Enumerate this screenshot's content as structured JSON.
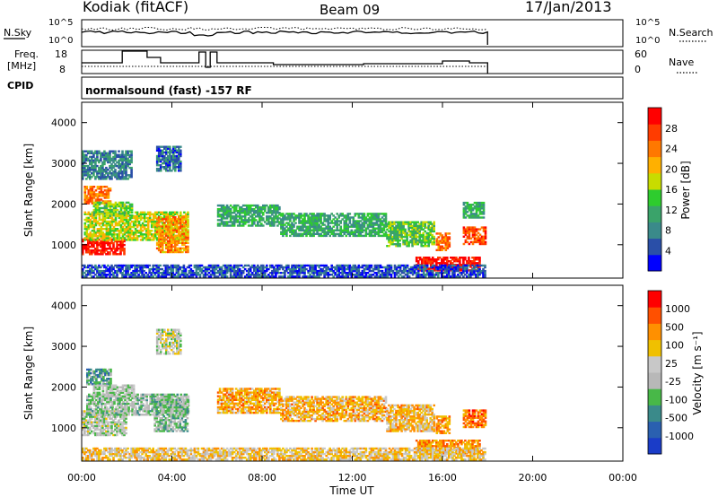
{
  "header": {
    "station": "Kodiak (fitACF)",
    "beam": "Beam 09",
    "date": "17/Jan/2013",
    "program": "normalsound (fast) -157 RF"
  },
  "labels": {
    "nsky": "N.Sky",
    "nsearch": "N.Search",
    "freq": "Freq.",
    "freq_unit": "[MHz]",
    "nave": "Nave",
    "cpid": "CPID"
  },
  "status_ticks": {
    "noise_left": [
      "10^5",
      "10^0"
    ],
    "noise_right": [
      "10^5",
      "10^0"
    ],
    "freq_left": [
      "18",
      "8"
    ],
    "nave_right": [
      "60",
      "0"
    ]
  },
  "chart_data": [
    {
      "type": "heatmap",
      "name": "power",
      "ylabel": "Slant Range [km]",
      "xlabel": "",
      "ylim": [
        180,
        4500
      ],
      "xlim": [
        "00:00",
        "24:00"
      ],
      "yticks": [
        "1000",
        "2000",
        "3000",
        "4000"
      ],
      "xticks": [
        "00:00",
        "04:00",
        "08:00",
        "12:00",
        "16:00",
        "20:00",
        "00:00"
      ],
      "colorbar_label": "Power [dB]",
      "colorbar_ticks": [
        "28",
        "24",
        "20",
        "16",
        "12",
        "8",
        "4"
      ],
      "colors": [
        "#0000ff",
        "#2a4fa8",
        "#3a8a8a",
        "#3aa36a",
        "#2ecc2e",
        "#c8dc00",
        "#ffb000",
        "#ff7800",
        "#ff3c00",
        "#ff0000"
      ],
      "blobs": [
        {
          "t0": 0.0,
          "t1": 1.9,
          "r0": 750,
          "r1": 1150,
          "v": 0.95
        },
        {
          "t0": 0.1,
          "t1": 4.7,
          "r0": 1100,
          "r1": 1800,
          "v": 0.55
        },
        {
          "t0": 0.1,
          "t1": 1.3,
          "r0": 2000,
          "r1": 2450,
          "v": 0.75
        },
        {
          "t0": 0.5,
          "t1": 2.2,
          "r0": 1700,
          "r1": 2050,
          "v": 0.45
        },
        {
          "t0": 3.3,
          "t1": 4.7,
          "r0": 800,
          "r1": 1700,
          "v": 0.7
        },
        {
          "t0": 0.0,
          "t1": 2.2,
          "r0": 2600,
          "r1": 3300,
          "v": 0.25
        },
        {
          "t0": 3.3,
          "t1": 4.4,
          "r0": 2800,
          "r1": 3400,
          "v": 0.2
        },
        {
          "t0": 6.0,
          "t1": 8.8,
          "r0": 1450,
          "r1": 1950,
          "v": 0.35
        },
        {
          "t0": 8.8,
          "t1": 13.5,
          "r0": 1200,
          "r1": 1750,
          "v": 0.35
        },
        {
          "t0": 13.5,
          "t1": 15.6,
          "r0": 950,
          "r1": 1550,
          "v": 0.45
        },
        {
          "t0": 14.8,
          "t1": 17.6,
          "r0": 350,
          "r1": 700,
          "v": 0.95
        },
        {
          "t0": 15.7,
          "t1": 16.3,
          "r0": 850,
          "r1": 1300,
          "v": 0.75
        },
        {
          "t0": 16.9,
          "t1": 17.9,
          "r0": 1000,
          "r1": 1450,
          "v": 0.85
        },
        {
          "t0": 16.9,
          "t1": 17.8,
          "r0": 1650,
          "r1": 2050,
          "v": 0.35
        },
        {
          "t0": 0.0,
          "t1": 17.9,
          "r0": 200,
          "r1": 500,
          "v": 0.15
        }
      ]
    },
    {
      "type": "heatmap",
      "name": "velocity",
      "ylabel": "Slant Range [km]",
      "xlabel": "Time UT",
      "ylim": [
        180,
        4500
      ],
      "xlim": [
        "00:00",
        "24:00"
      ],
      "yticks": [
        "1000",
        "2000",
        "3000",
        "4000"
      ],
      "xticks": [
        "00:00",
        "04:00",
        "08:00",
        "12:00",
        "16:00",
        "20:00",
        "00:00"
      ],
      "colorbar_label": "Velocity [m s⁻¹]",
      "colorbar_ticks": [
        "1000",
        "500",
        "100",
        "25",
        "-25",
        "-100",
        "-500",
        "-1000"
      ],
      "colors": [
        "#1a3cc8",
        "#2a60b0",
        "#3a8a8a",
        "#48b848",
        "#b8b8b8",
        "#c8c8c8",
        "#f0c000",
        "#ff9000",
        "#ff5000",
        "#ff0000"
      ],
      "blobs": [
        {
          "t0": 0.0,
          "t1": 2.0,
          "r0": 800,
          "r1": 1400,
          "v": 0.48
        },
        {
          "t0": 0.2,
          "t1": 4.7,
          "r0": 1300,
          "r1": 1800,
          "v": 0.42
        },
        {
          "t0": 0.2,
          "t1": 1.3,
          "r0": 2050,
          "r1": 2450,
          "v": 0.3
        },
        {
          "t0": 0.5,
          "t1": 2.3,
          "r0": 1750,
          "r1": 2050,
          "v": 0.45
        },
        {
          "t0": 3.2,
          "t1": 4.7,
          "r0": 900,
          "r1": 1700,
          "v": 0.4
        },
        {
          "t0": 3.3,
          "t1": 4.4,
          "r0": 2800,
          "r1": 3400,
          "v": 0.5
        },
        {
          "t0": 6.0,
          "t1": 8.8,
          "r0": 1350,
          "r1": 1950,
          "v": 0.7
        },
        {
          "t0": 8.8,
          "t1": 13.5,
          "r0": 1150,
          "r1": 1750,
          "v": 0.68
        },
        {
          "t0": 13.5,
          "t1": 15.6,
          "r0": 900,
          "r1": 1550,
          "v": 0.66
        },
        {
          "t0": 14.8,
          "t1": 17.6,
          "r0": 350,
          "r1": 700,
          "v": 0.75
        },
        {
          "t0": 15.7,
          "t1": 16.3,
          "r0": 850,
          "r1": 1300,
          "v": 0.72
        },
        {
          "t0": 16.9,
          "t1": 17.9,
          "r0": 1000,
          "r1": 1450,
          "v": 0.8
        },
        {
          "t0": 0.0,
          "t1": 17.9,
          "r0": 200,
          "r1": 500,
          "v": 0.62
        }
      ]
    }
  ]
}
